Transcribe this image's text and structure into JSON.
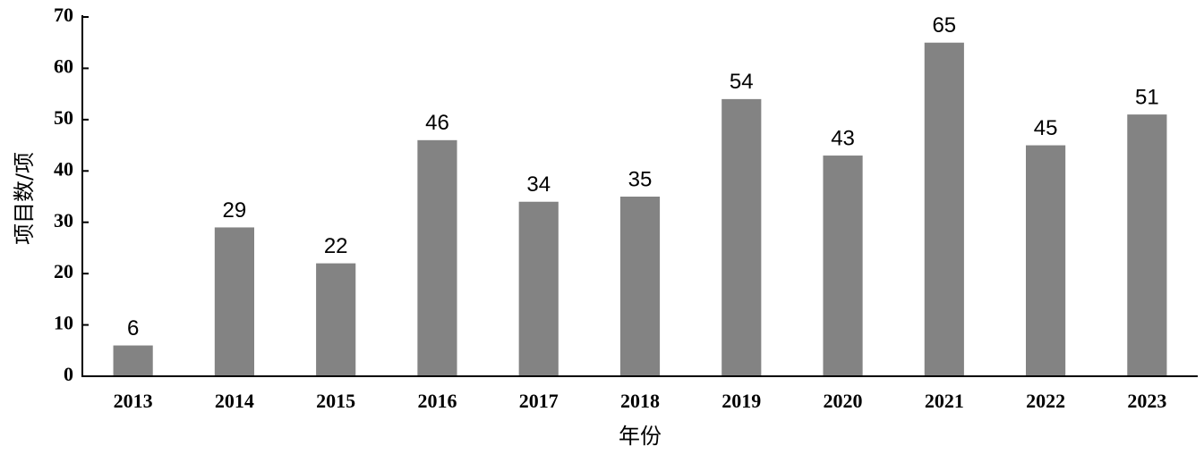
{
  "chart_data": {
    "type": "bar",
    "x_label": "年份",
    "y_label": "项目数/项",
    "categories": [
      "2013",
      "2014",
      "2015",
      "2016",
      "2017",
      "2018",
      "2019",
      "2020",
      "2021",
      "2022",
      "2023"
    ],
    "values": [
      6,
      29,
      22,
      46,
      34,
      35,
      54,
      43,
      65,
      45,
      51
    ],
    "color": "#838383",
    "ylim": [
      0,
      70
    ],
    "yticks": [
      0,
      10,
      20,
      30,
      40,
      50,
      60,
      70
    ],
    "grid": false
  }
}
